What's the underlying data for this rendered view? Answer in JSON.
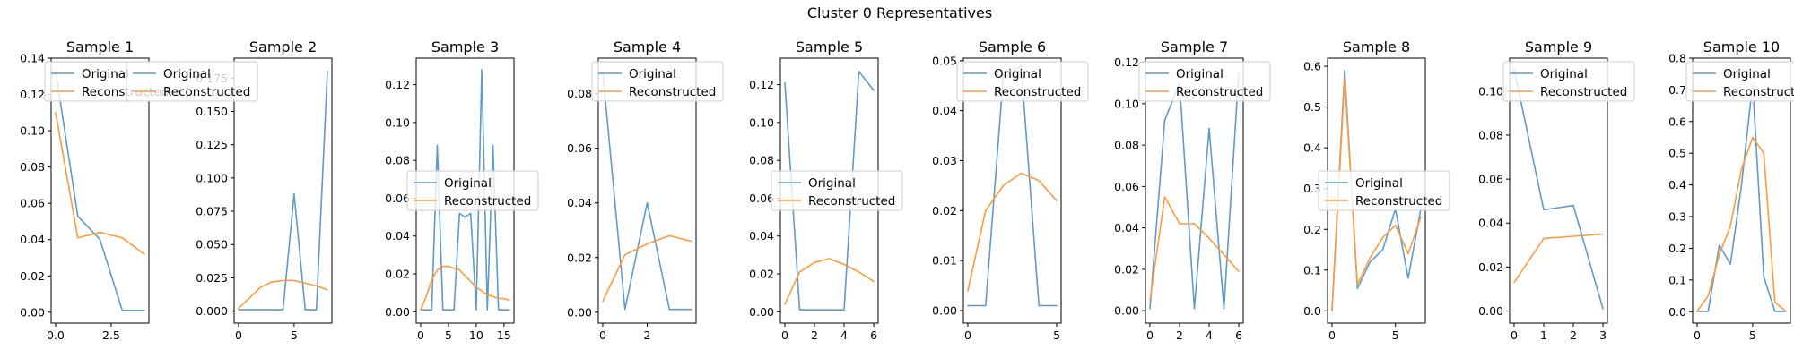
{
  "figure": {
    "suptitle": "Cluster 0 Representatives"
  },
  "legend_labels": [
    "Original",
    "Reconstructed"
  ],
  "colors": {
    "original": "#5f9ac9",
    "reconstructed": "#ff9a3c"
  },
  "chart_data": [
    {
      "type": "line",
      "title": "Sample 1",
      "xlim": [
        -0.2,
        4.2
      ],
      "ylim": [
        -0.006,
        0.14
      ],
      "xticks": [
        0,
        2.5
      ],
      "xtick_labels": [
        "0.0",
        "2.5"
      ],
      "yticks": [
        0,
        0.02,
        0.04,
        0.06,
        0.08,
        0.1,
        0.12,
        0.14
      ],
      "ytick_labels": [
        "0.00",
        "0.02",
        "0.04",
        "0.06",
        "0.08",
        "0.10",
        "0.12",
        "0.14"
      ],
      "legend_position": "upper-right",
      "series": [
        {
          "name": "Original",
          "x": [
            0,
            1,
            2,
            3,
            4
          ],
          "y": [
            0.133,
            0.053,
            0.04,
            0.001,
            0.001
          ]
        },
        {
          "name": "Reconstructed",
          "x": [
            0,
            1,
            2,
            3,
            4
          ],
          "y": [
            0.11,
            0.041,
            0.044,
            0.041,
            0.032
          ]
        }
      ]
    },
    {
      "type": "line",
      "title": "Sample 2",
      "xlim": [
        -0.4,
        8.4
      ],
      "ylim": [
        -0.009,
        0.19
      ],
      "xticks": [
        0,
        5
      ],
      "xtick_labels": [
        "0",
        "5"
      ],
      "yticks": [
        0,
        0.025,
        0.05,
        0.075,
        0.1,
        0.125,
        0.15,
        0.175
      ],
      "ytick_labels": [
        "0.000",
        "0.025",
        "0.050",
        "0.075",
        "0.100",
        "0.125",
        "0.150",
        "0.175"
      ],
      "legend_position": "upper-left",
      "series": [
        {
          "name": "Original",
          "x": [
            0,
            1,
            2,
            3,
            4,
            5,
            6,
            7,
            8
          ],
          "y": [
            0.001,
            0.001,
            0.001,
            0.001,
            0.001,
            0.088,
            0.001,
            0.001,
            0.18
          ]
        },
        {
          "name": "Reconstructed",
          "x": [
            0,
            1,
            2,
            3,
            4,
            5,
            6,
            7,
            8
          ],
          "y": [
            0.002,
            0.01,
            0.018,
            0.022,
            0.023,
            0.023,
            0.021,
            0.019,
            0.016
          ]
        }
      ]
    },
    {
      "type": "line",
      "title": "Sample 3",
      "xlim": [
        -0.8,
        16.8
      ],
      "ylim": [
        -0.006,
        0.134
      ],
      "xticks": [
        0,
        5,
        10,
        15
      ],
      "xtick_labels": [
        "0",
        "5",
        "10",
        "15"
      ],
      "yticks": [
        0,
        0.02,
        0.04,
        0.06,
        0.08,
        0.1,
        0.12
      ],
      "ytick_labels": [
        "0.00",
        "0.02",
        "0.04",
        "0.06",
        "0.08",
        "0.10",
        "0.12"
      ],
      "legend_position": "center-left",
      "series": [
        {
          "name": "Original",
          "x": [
            0,
            1,
            2,
            3,
            4,
            5,
            6,
            7,
            8,
            9,
            10,
            11,
            12,
            13,
            14,
            15,
            16
          ],
          "y": [
            0.001,
            0.001,
            0.001,
            0.088,
            0.001,
            0.001,
            0.001,
            0.052,
            0.05,
            0.052,
            0.001,
            0.128,
            0.001,
            0.088,
            0.001,
            0.001,
            0.001
          ]
        },
        {
          "name": "Reconstructed",
          "x": [
            0,
            1,
            2,
            3,
            4,
            5,
            6,
            7,
            8,
            9,
            10,
            11,
            12,
            13,
            14,
            15,
            16
          ],
          "y": [
            0.001,
            0.008,
            0.017,
            0.022,
            0.024,
            0.024,
            0.023,
            0.022,
            0.019,
            0.016,
            0.013,
            0.011,
            0.009,
            0.008,
            0.007,
            0.007,
            0.006
          ]
        }
      ]
    },
    {
      "type": "line",
      "title": "Sample 4",
      "xlim": [
        -0.2,
        4.2
      ],
      "ylim": [
        -0.004,
        0.093
      ],
      "xticks": [
        0,
        2
      ],
      "xtick_labels": [
        "0",
        "2"
      ],
      "yticks": [
        0,
        0.02,
        0.04,
        0.06,
        0.08
      ],
      "ytick_labels": [
        "0.00",
        "0.02",
        "0.04",
        "0.06",
        "0.08"
      ],
      "legend_position": "upper-right",
      "series": [
        {
          "name": "Original",
          "x": [
            0,
            1,
            2,
            3,
            4
          ],
          "y": [
            0.088,
            0.001,
            0.04,
            0.001,
            0.001
          ]
        },
        {
          "name": "Reconstructed",
          "x": [
            0,
            1,
            2,
            3,
            4
          ],
          "y": [
            0.004,
            0.021,
            0.025,
            0.028,
            0.026
          ]
        }
      ]
    },
    {
      "type": "line",
      "title": "Sample 5",
      "xlim": [
        -0.3,
        6.3
      ],
      "ylim": [
        -0.006,
        0.134
      ],
      "xticks": [
        0,
        2,
        4,
        6
      ],
      "xtick_labels": [
        "0",
        "2",
        "4",
        "6"
      ],
      "yticks": [
        0,
        0.02,
        0.04,
        0.06,
        0.08,
        0.1,
        0.12
      ],
      "ytick_labels": [
        "0.00",
        "0.02",
        "0.04",
        "0.06",
        "0.08",
        "0.10",
        "0.12"
      ],
      "legend_position": "center-left",
      "series": [
        {
          "name": "Original",
          "x": [
            0,
            1,
            2,
            3,
            4,
            5,
            6
          ],
          "y": [
            0.121,
            0.001,
            0.001,
            0.001,
            0.001,
            0.127,
            0.117
          ]
        },
        {
          "name": "Reconstructed",
          "x": [
            0,
            1,
            2,
            3,
            4,
            5,
            6
          ],
          "y": [
            0.004,
            0.021,
            0.026,
            0.028,
            0.025,
            0.021,
            0.016
          ]
        }
      ]
    },
    {
      "type": "line",
      "title": "Sample 6",
      "xlim": [
        -0.25,
        5.25
      ],
      "ylim": [
        -0.0025,
        0.0505
      ],
      "xticks": [
        0,
        5
      ],
      "xtick_labels": [
        "0",
        "5"
      ],
      "yticks": [
        0,
        0.01,
        0.02,
        0.03,
        0.04,
        0.05
      ],
      "ytick_labels": [
        "0.00",
        "0.01",
        "0.02",
        "0.03",
        "0.04",
        "0.05"
      ],
      "legend_position": "upper-right",
      "series": [
        {
          "name": "Original",
          "x": [
            0,
            1,
            2,
            3,
            4,
            5
          ],
          "y": [
            0.001,
            0.001,
            0.047,
            0.049,
            0.001,
            0.001
          ]
        },
        {
          "name": "Reconstructed",
          "x": [
            0,
            1,
            2,
            3,
            4,
            5
          ],
          "y": [
            0.004,
            0.02,
            0.025,
            0.0275,
            0.026,
            0.022
          ]
        }
      ]
    },
    {
      "type": "line",
      "title": "Sample 7",
      "xlim": [
        -0.3,
        6.3
      ],
      "ylim": [
        -0.006,
        0.122
      ],
      "xticks": [
        0,
        2,
        4,
        6
      ],
      "xtick_labels": [
        "0",
        "2",
        "4",
        "6"
      ],
      "yticks": [
        0,
        0.02,
        0.04,
        0.06,
        0.08,
        0.1,
        0.12
      ],
      "ytick_labels": [
        "0.00",
        "0.02",
        "0.04",
        "0.06",
        "0.08",
        "0.10",
        "0.12"
      ],
      "legend_position": "upper-right",
      "series": [
        {
          "name": "Original",
          "x": [
            0,
            1,
            2,
            3,
            4,
            5,
            6
          ],
          "y": [
            0.001,
            0.092,
            0.11,
            0.001,
            0.088,
            0.001,
            0.115
          ]
        },
        {
          "name": "Reconstructed",
          "x": [
            0,
            1,
            2,
            3,
            4,
            5,
            6
          ],
          "y": [
            0.005,
            0.055,
            0.042,
            0.042,
            0.035,
            0.027,
            0.019
          ]
        }
      ]
    },
    {
      "type": "line",
      "title": "Sample 8",
      "xlim": [
        -0.35,
        7.35
      ],
      "ylim": [
        -0.03,
        0.62
      ],
      "xticks": [
        0,
        5
      ],
      "xtick_labels": [
        "0",
        "5"
      ],
      "yticks": [
        0,
        0.1,
        0.2,
        0.3,
        0.4,
        0.5,
        0.6
      ],
      "ytick_labels": [
        "0.0",
        "0.1",
        "0.2",
        "0.3",
        "0.4",
        "0.5",
        "0.6"
      ],
      "legend_position": "center-left",
      "series": [
        {
          "name": "Original",
          "x": [
            0,
            1,
            2,
            3,
            4,
            5,
            6,
            7
          ],
          "y": [
            0.001,
            0.59,
            0.055,
            0.12,
            0.15,
            0.25,
            0.08,
            0.25
          ]
        },
        {
          "name": "Reconstructed",
          "x": [
            0,
            1,
            2,
            3,
            4,
            5,
            6,
            7
          ],
          "y": [
            0.001,
            0.57,
            0.065,
            0.13,
            0.18,
            0.21,
            0.14,
            0.23
          ]
        }
      ]
    },
    {
      "type": "line",
      "title": "Sample 9",
      "xlim": [
        -0.15,
        3.15
      ],
      "ylim": [
        -0.0055,
        0.115
      ],
      "xticks": [
        0,
        1,
        2,
        3
      ],
      "xtick_labels": [
        "0",
        "1",
        "2",
        "3"
      ],
      "yticks": [
        0,
        0.02,
        0.04,
        0.06,
        0.08,
        0.1
      ],
      "ytick_labels": [
        "0.00",
        "0.02",
        "0.04",
        "0.06",
        "0.08",
        "0.10"
      ],
      "legend_position": "upper-right",
      "series": [
        {
          "name": "Original",
          "x": [
            0,
            1,
            2,
            3
          ],
          "y": [
            0.11,
            0.046,
            0.048,
            0.001
          ]
        },
        {
          "name": "Reconstructed",
          "x": [
            0,
            1,
            2,
            3
          ],
          "y": [
            0.013,
            0.033,
            0.034,
            0.035
          ]
        }
      ]
    },
    {
      "type": "line",
      "title": "Sample 10",
      "xlim": [
        -0.4,
        8.4
      ],
      "ylim": [
        -0.036,
        0.8
      ],
      "xticks": [
        0,
        5
      ],
      "xtick_labels": [
        "0",
        "5"
      ],
      "yticks": [
        0,
        0.1,
        0.2,
        0.3,
        0.4,
        0.5,
        0.6,
        0.7,
        0.8
      ],
      "ytick_labels": [
        "0.0",
        "0.1",
        "0.2",
        "0.3",
        "0.4",
        "0.5",
        "0.6",
        "0.7",
        "0.8"
      ],
      "legend_position": "upper-right",
      "series": [
        {
          "name": "Original",
          "x": [
            0,
            1,
            2,
            3,
            4,
            5,
            6,
            7,
            8
          ],
          "y": [
            0.001,
            0.001,
            0.21,
            0.15,
            0.4,
            0.72,
            0.11,
            0.001,
            0.001
          ]
        },
        {
          "name": "Reconstructed",
          "x": [
            0,
            1,
            2,
            3,
            4,
            5,
            6,
            7,
            8
          ],
          "y": [
            0.001,
            0.05,
            0.18,
            0.27,
            0.45,
            0.55,
            0.5,
            0.03,
            0.001
          ]
        }
      ]
    }
  ]
}
